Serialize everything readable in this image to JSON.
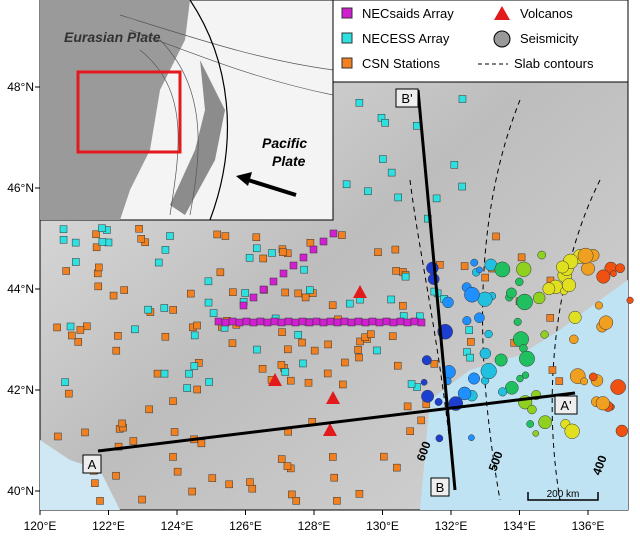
{
  "map": {
    "x_ticks": [
      "120°E",
      "122°E",
      "124°E",
      "126°E",
      "128°E",
      "130°E",
      "132°E",
      "134°E",
      "136°E"
    ],
    "y_ticks": [
      "48°N",
      "46°N",
      "44°N",
      "42°N",
      "40°N"
    ]
  },
  "legend": {
    "items": [
      "NECsaids Array",
      "NECESS Array",
      "CSN Stations",
      "Volcanos",
      "Seismicity",
      "Slab contours"
    ]
  },
  "inset": {
    "eurasian_plate": "Eurasian Plate",
    "pacific_plate": [
      "Pacific",
      "Plate"
    ]
  },
  "profile_labels": [
    "A",
    "A'",
    "B",
    "B'"
  ],
  "slab_contour_labels": [
    "600",
    "500",
    "400"
  ],
  "scale_bar": "200 km"
}
